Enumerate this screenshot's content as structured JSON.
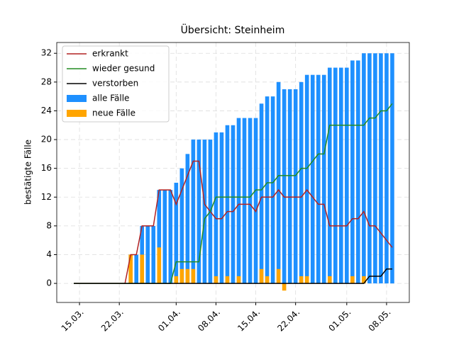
{
  "chart_data": {
    "type": "bar",
    "title": "Übersicht: Steinheim",
    "ylabel": "bestätigte Fälle",
    "x": [
      "14.03.",
      "15.03.",
      "16.03.",
      "17.03.",
      "18.03.",
      "19.03.",
      "20.03.",
      "21.03.",
      "22.03.",
      "23.03.",
      "24.03.",
      "25.03.",
      "26.03.",
      "27.03.",
      "28.03.",
      "29.03.",
      "30.03.",
      "31.03.",
      "01.04.",
      "02.04.",
      "03.04.",
      "04.04.",
      "05.04.",
      "06.04.",
      "07.04.",
      "08.04.",
      "09.04.",
      "10.04.",
      "11.04.",
      "12.04.",
      "13.04.",
      "14.04.",
      "15.04.",
      "16.04.",
      "17.04.",
      "18.04.",
      "19.04.",
      "20.04.",
      "21.04.",
      "22.04.",
      "23.04.",
      "24.04.",
      "25.04.",
      "26.04.",
      "27.04.",
      "28.04.",
      "29.04.",
      "30.04.",
      "01.05.",
      "02.05.",
      "03.05.",
      "04.05.",
      "05.05.",
      "06.05.",
      "07.05.",
      "08.05.",
      "09.05."
    ],
    "series": [
      {
        "name": "erkrankt",
        "type": "line",
        "color": "#b22222",
        "values": [
          0,
          0,
          0,
          0,
          0,
          0,
          0,
          0,
          0,
          0,
          4,
          4,
          8,
          8,
          8,
          13,
          13,
          13,
          11,
          13,
          15,
          17,
          17,
          11,
          10,
          9,
          9,
          10,
          10,
          11,
          11,
          11,
          10,
          12,
          12,
          12,
          13,
          12,
          12,
          12,
          12,
          13,
          12,
          11,
          11,
          8,
          8,
          8,
          8,
          9,
          9,
          10,
          8,
          8,
          7,
          6,
          5
        ]
      },
      {
        "name": "wieder gesund",
        "type": "line",
        "color": "#228b22",
        "values": [
          0,
          0,
          0,
          0,
          0,
          0,
          0,
          0,
          0,
          0,
          0,
          0,
          0,
          0,
          0,
          0,
          0,
          0,
          3,
          3,
          3,
          3,
          3,
          9,
          10,
          12,
          12,
          12,
          12,
          12,
          12,
          12,
          13,
          13,
          14,
          14,
          15,
          15,
          15,
          15,
          16,
          16,
          17,
          18,
          18,
          22,
          22,
          22,
          22,
          22,
          22,
          22,
          23,
          23,
          24,
          24,
          25
        ]
      },
      {
        "name": "verstorben",
        "type": "line",
        "color": "#000000",
        "values": [
          0,
          0,
          0,
          0,
          0,
          0,
          0,
          0,
          0,
          0,
          0,
          0,
          0,
          0,
          0,
          0,
          0,
          0,
          0,
          0,
          0,
          0,
          0,
          0,
          0,
          0,
          0,
          0,
          0,
          0,
          0,
          0,
          0,
          0,
          0,
          0,
          0,
          0,
          0,
          0,
          0,
          0,
          0,
          0,
          0,
          0,
          0,
          0,
          0,
          0,
          0,
          0,
          1,
          1,
          1,
          2,
          2
        ]
      },
      {
        "name": "alle Fälle",
        "type": "bar",
        "color": "#1e90ff",
        "values": [
          0,
          0,
          0,
          0,
          0,
          0,
          0,
          0,
          0,
          0,
          4,
          4,
          8,
          8,
          8,
          13,
          13,
          13,
          14,
          16,
          18,
          20,
          20,
          20,
          20,
          21,
          21,
          22,
          22,
          23,
          23,
          23,
          23,
          25,
          26,
          26,
          28,
          27,
          27,
          27,
          28,
          29,
          29,
          29,
          29,
          30,
          30,
          30,
          30,
          31,
          31,
          32,
          32,
          32,
          32,
          32,
          32
        ]
      },
      {
        "name": "neue Fälle",
        "type": "bar",
        "color": "#ffa500",
        "values": [
          0,
          0,
          0,
          0,
          0,
          0,
          0,
          0,
          0,
          0,
          4,
          0,
          4,
          0,
          0,
          5,
          0,
          0,
          1,
          2,
          2,
          2,
          0,
          0,
          0,
          1,
          0,
          1,
          0,
          1,
          0,
          0,
          0,
          2,
          1,
          0,
          2,
          -1,
          0,
          0,
          1,
          1,
          0,
          0,
          0,
          1,
          0,
          0,
          0,
          1,
          0,
          1,
          0,
          0,
          0,
          0,
          0
        ]
      }
    ],
    "xlim": [
      "11.03.",
      "12.05."
    ],
    "xticks": [
      "15.03.",
      "22.03.",
      "01.04.",
      "08.04.",
      "15.04.",
      "22.04.",
      "01.05.",
      "08.05."
    ],
    "ylim": [
      -2.65,
      33.5
    ],
    "yticks": [
      0,
      4,
      8,
      12,
      16,
      20,
      24,
      28,
      32
    ],
    "grid": true,
    "legend": "upper left"
  }
}
